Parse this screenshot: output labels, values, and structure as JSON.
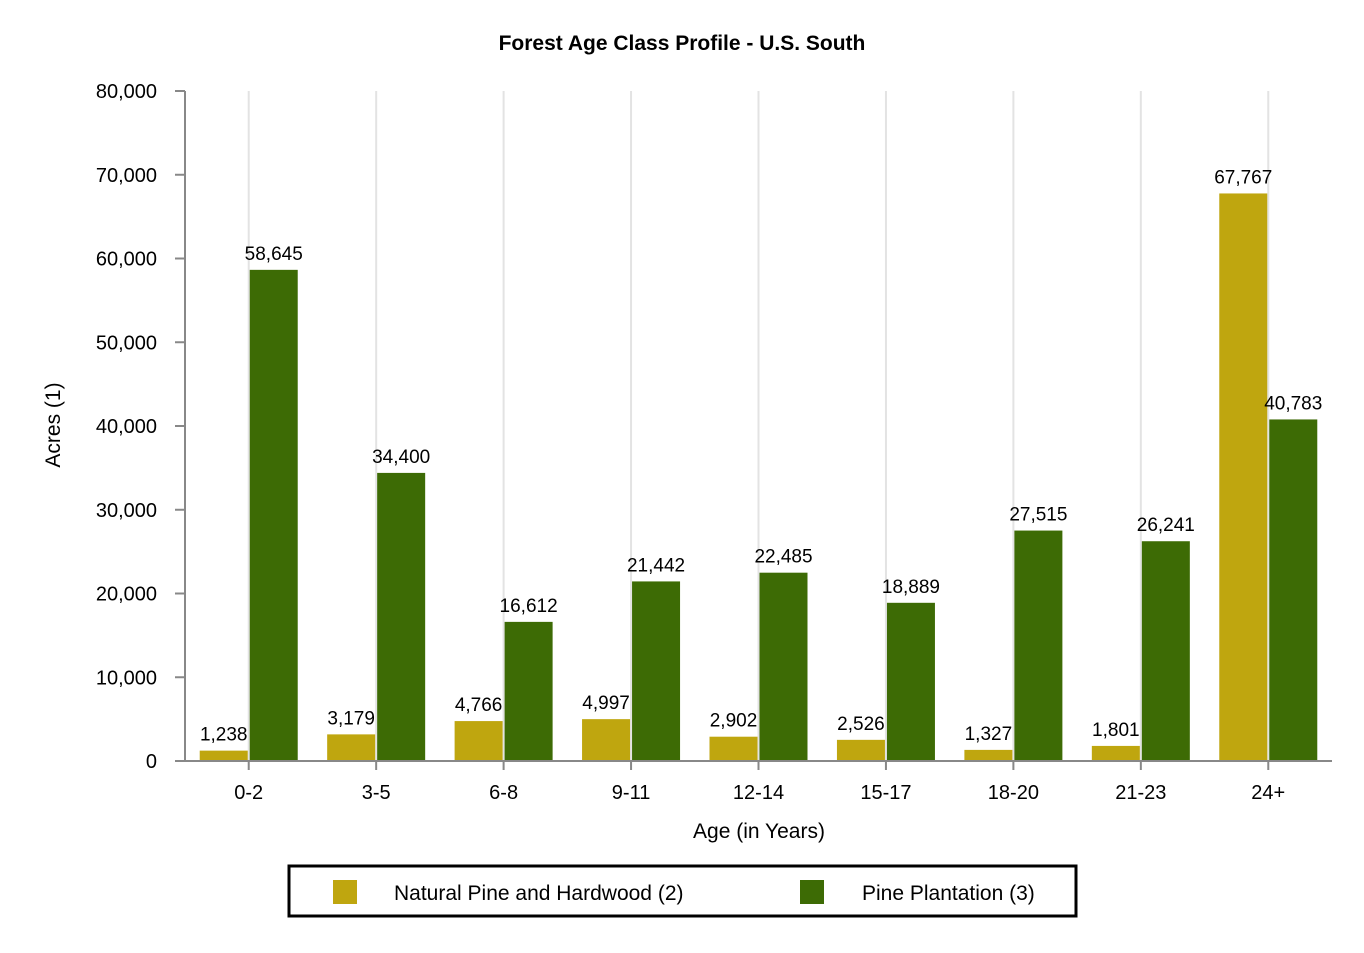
{
  "chart_data": {
    "type": "bar",
    "title": "Forest Age Class Profile - U.S. South",
    "xlabel": "Age (in Years)",
    "ylabel": "Acres (1)",
    "ylim": [
      0,
      80000
    ],
    "yticks": [
      0,
      10000,
      20000,
      30000,
      40000,
      50000,
      60000,
      70000,
      80000
    ],
    "ytick_labels": [
      "0",
      "10,000",
      "20,000",
      "30,000",
      "40,000",
      "50,000",
      "60,000",
      "70,000",
      "80,000"
    ],
    "categories": [
      "0-2",
      "3-5",
      "6-8",
      "9-11",
      "12-14",
      "15-17",
      "18-20",
      "21-23",
      "24+"
    ],
    "series": [
      {
        "name": "Natural Pine and Hardwood (2)",
        "color": "#bfa60f",
        "values": [
          1238,
          3179,
          4766,
          4997,
          2902,
          2526,
          1327,
          1801,
          67767
        ],
        "labels": [
          "1,238",
          "3,179",
          "4,766",
          "4,997",
          "2,902",
          "2,526",
          "1,327",
          "1,801",
          "67,767"
        ]
      },
      {
        "name": "Pine Plantation (3)",
        "color": "#3d6b05",
        "values": [
          58645,
          34400,
          16612,
          21442,
          22485,
          18889,
          27515,
          26241,
          40783
        ],
        "labels": [
          "58,645",
          "34,400",
          "16,612",
          "21,442",
          "22,485",
          "18,889",
          "27,515",
          "26,241",
          "40,783"
        ]
      }
    ],
    "grid": {
      "vertical": true,
      "horizontal": false
    },
    "legend_position": "bottom"
  }
}
